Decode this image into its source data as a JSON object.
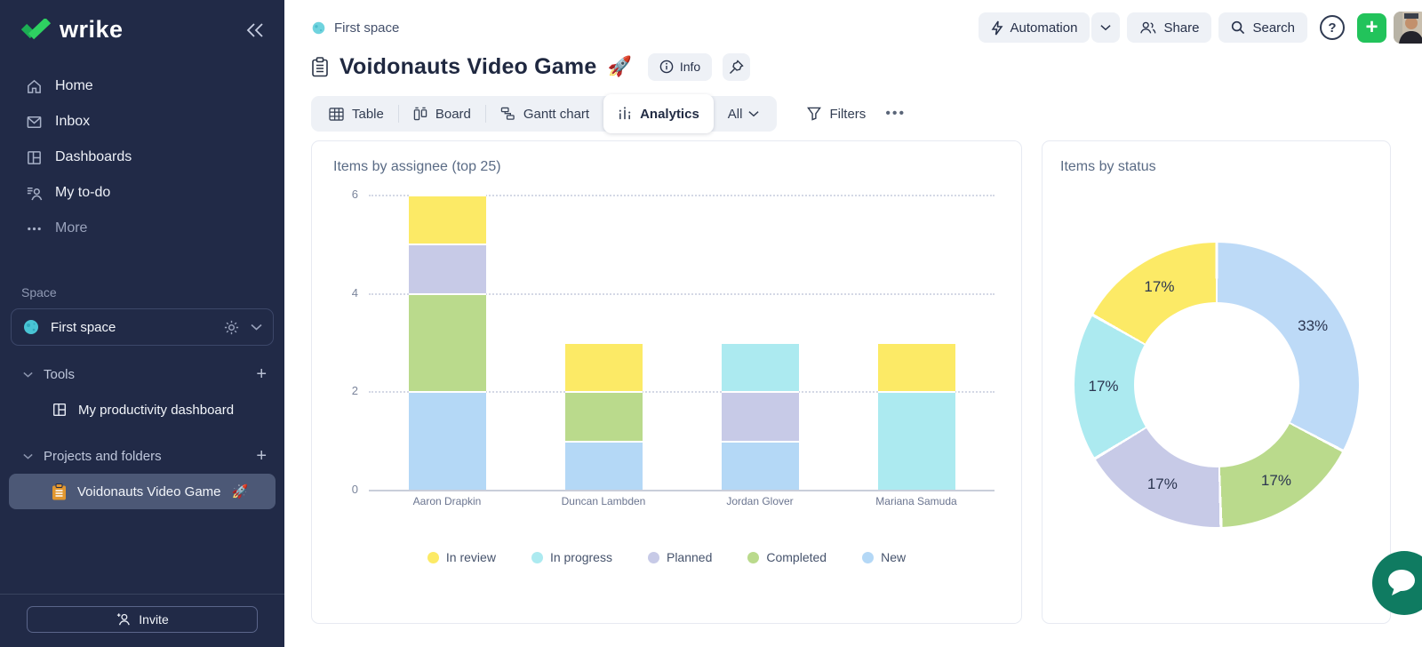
{
  "sidebar": {
    "logo_text": "wrike",
    "nav": [
      {
        "label": "Home",
        "icon": "home-icon"
      },
      {
        "label": "Inbox",
        "icon": "inbox-icon"
      },
      {
        "label": "Dashboards",
        "icon": "dashboards-icon"
      },
      {
        "label": "My to-do",
        "icon": "todo-icon"
      },
      {
        "label": "More",
        "icon": "ellipsis-icon"
      }
    ],
    "space_section_label": "Space",
    "space_name": "First space",
    "tools_group_label": "Tools",
    "tools_item_label": "My productivity dashboard",
    "projects_group_label": "Projects and folders",
    "project_item_label": "Voidonauts Video Game",
    "project_item_emoji": "🚀",
    "invite_label": "Invite"
  },
  "header": {
    "breadcrumb": "First space",
    "title": "Voidonauts Video Game",
    "title_emoji": "🚀",
    "info_label": "Info"
  },
  "toolbar": {
    "tab_table": "Table",
    "tab_board": "Board",
    "tab_gantt": "Gantt chart",
    "tab_analytics": "Analytics",
    "active_tab": "Analytics",
    "scope_label": "All",
    "filters_label": "Filters",
    "more_label": "•••"
  },
  "actions": {
    "automation_label": "Automation",
    "share_label": "Share",
    "search_label": "Search",
    "help_label": "?"
  },
  "colors": {
    "sidebar_bg": "#212A47",
    "selected_row": "#4C5876",
    "accent_green": "#22C35B",
    "chat_green": "#0F7B61",
    "card_border": "#E7EAF2",
    "pill_bg": "#EEF1F6"
  },
  "chart_data": [
    {
      "type": "bar",
      "stacked": true,
      "title": "Items by assignee (top 25)",
      "categories": [
        "Aaron Drapkin",
        "Duncan Lambden",
        "Jordan Glover",
        "Mariana Samuda"
      ],
      "series": [
        {
          "name": "New",
          "color": "#B4D8F6",
          "values": [
            2,
            1,
            1,
            0
          ]
        },
        {
          "name": "Completed",
          "color": "#BADA8C",
          "values": [
            2,
            1,
            0,
            0
          ]
        },
        {
          "name": "Planned",
          "color": "#C7CAE7",
          "values": [
            1,
            0,
            1,
            0
          ]
        },
        {
          "name": "In progress",
          "color": "#ACEAF0",
          "values": [
            0,
            0,
            1,
            2
          ]
        },
        {
          "name": "In review",
          "color": "#FCEA66",
          "values": [
            1,
            1,
            0,
            1
          ]
        }
      ],
      "totals": [
        6,
        3,
        3,
        3
      ],
      "legend": [
        {
          "name": "In review",
          "color": "#FCEA66"
        },
        {
          "name": "In progress",
          "color": "#ACEAF0"
        },
        {
          "name": "Planned",
          "color": "#C7CAE7"
        },
        {
          "name": "Completed",
          "color": "#BADA8C"
        },
        {
          "name": "New",
          "color": "#B4D8F6"
        }
      ],
      "ylim": [
        0,
        6
      ],
      "yticks": [
        6,
        4,
        2,
        0
      ],
      "grid": "dotted-horizontal",
      "legend_position": "bottom"
    },
    {
      "type": "pie",
      "variant": "donut",
      "title": "Items by status",
      "slices": [
        {
          "name": "New",
          "value": 33,
          "label": "33%",
          "color": "#BDDAF7"
        },
        {
          "name": "Completed",
          "value": 17,
          "label": "17%",
          "color": "#BADA8C"
        },
        {
          "name": "Planned",
          "value": 17,
          "label": "17%",
          "color": "#C7CAE7"
        },
        {
          "name": "In progress",
          "value": 17,
          "label": "17%",
          "color": "#ACEAF0"
        },
        {
          "name": "In review",
          "value": 17,
          "label": "17%",
          "color": "#FCEA66"
        }
      ],
      "start_angle_deg": 0,
      "direction": "clockwise",
      "inner_radius_ratio": 0.58,
      "labels": "percent-inside-ring"
    }
  ]
}
